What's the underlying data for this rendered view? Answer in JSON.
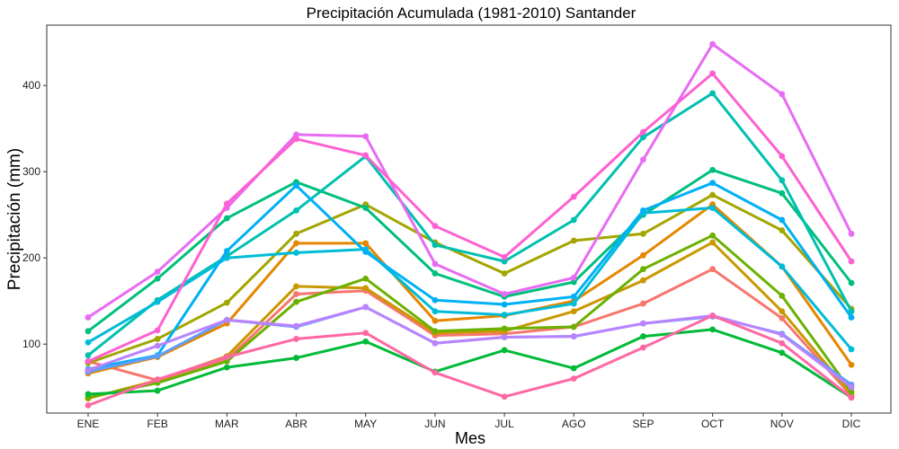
{
  "chart_data": {
    "type": "line",
    "title": "Precipitación Acumulada (1981-2010)  Santander",
    "xlabel": "Mes",
    "ylabel": "Precipitación  (mm)",
    "categories": [
      "ENE",
      "FEB",
      "MAR",
      "ABR",
      "MAY",
      "JUN",
      "JUL",
      "AGO",
      "SEP",
      "OCT",
      "NOV",
      "DIC"
    ],
    "ylim": [
      20,
      470
    ],
    "yticks": [
      100,
      200,
      300,
      400
    ],
    "grid": false,
    "legend": "none",
    "series": [
      {
        "color": "#F8766D",
        "values": [
          80,
          58,
          82,
          158,
          162,
          110,
          112,
          120,
          147,
          187,
          130,
          40
        ]
      },
      {
        "color": "#E58700",
        "values": [
          66,
          85,
          124,
          217,
          217,
          127,
          133,
          150,
          203,
          262,
          190,
          76
        ]
      },
      {
        "color": "#C99800",
        "values": [
          37,
          58,
          86,
          167,
          165,
          113,
          115,
          138,
          174,
          218,
          138,
          42
        ]
      },
      {
        "color": "#A3A500",
        "values": [
          78,
          106,
          148,
          228,
          262,
          218,
          182,
          220,
          228,
          273,
          232,
          141
        ]
      },
      {
        "color": "#6BB100",
        "values": [
          38,
          55,
          80,
          149,
          176,
          115,
          118,
          120,
          187,
          226,
          156,
          45
        ]
      },
      {
        "color": "#00BA38",
        "values": [
          42,
          46,
          73,
          84,
          103,
          68,
          93,
          72,
          109,
          117,
          90,
          38
        ]
      },
      {
        "color": "#00BF7D",
        "values": [
          115,
          176,
          246,
          288,
          258,
          182,
          155,
          172,
          250,
          302,
          275,
          171
        ]
      },
      {
        "color": "#00C0AF",
        "values": [
          87,
          151,
          202,
          255,
          318,
          215,
          196,
          244,
          340,
          391,
          290,
          138
        ]
      },
      {
        "color": "#00BCD8",
        "values": [
          102,
          149,
          200,
          206,
          210,
          138,
          134,
          147,
          252,
          258,
          190,
          94
        ]
      },
      {
        "color": "#00B0F6",
        "values": [
          71,
          87,
          208,
          284,
          207,
          151,
          146,
          155,
          255,
          287,
          244,
          131
        ]
      },
      {
        "color": "#619CFF",
        "values": [
          68,
          86,
          128,
          120,
          143,
          101,
          108,
          109,
          124,
          132,
          112,
          53
        ]
      },
      {
        "color": "#B983FF",
        "values": [
          70,
          98,
          128,
          121,
          143,
          101,
          108,
          109,
          124,
          133,
          111,
          50
        ]
      },
      {
        "color": "#E76BF3",
        "values": [
          131,
          184,
          258,
          343,
          341,
          193,
          158,
          177,
          314,
          448,
          390,
          228
        ]
      },
      {
        "color": "#FD61D1",
        "values": [
          80,
          116,
          263,
          338,
          319,
          237,
          201,
          271,
          346,
          414,
          318,
          196
        ]
      },
      {
        "color": "#FF67A4",
        "values": [
          29,
          59,
          85,
          106,
          113,
          67,
          39,
          60,
          96,
          133,
          101,
          38
        ]
      }
    ]
  }
}
